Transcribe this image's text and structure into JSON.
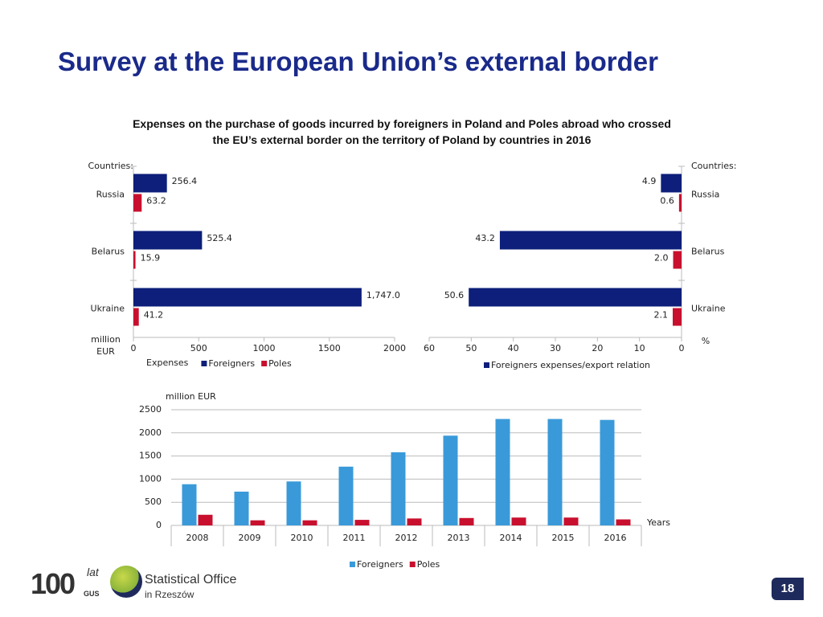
{
  "slide": {
    "title": "Survey at the European Union’s external border",
    "logo": {
      "number": "100",
      "script": "lat",
      "abbrev": "GUS",
      "office": "Statistical Office",
      "city": "in Rzeszów"
    },
    "page_number": "18"
  },
  "chart_data": [
    {
      "type": "hbar",
      "title": "Expenses on the purchase of goods incurred by foreigners in Poland and Poles abroad who crossed the EU’s external border on the territory of Poland by countries in 2016",
      "category_label": "Countries:",
      "unit_label": "million EUR",
      "legend_label": "Expenses",
      "categories": [
        "Russia",
        "Belarus",
        "Ukraine"
      ],
      "series": [
        {
          "name": "Foreigners",
          "color": "#0d1f7a",
          "values": [
            256.4,
            525.4,
            1747.0
          ],
          "value_labels": [
            "256.4",
            "525.4",
            "1,747.0"
          ]
        },
        {
          "name": "Poles",
          "color": "#c8102e",
          "values": [
            63.2,
            15.9,
            41.2
          ],
          "value_labels": [
            "63.2",
            "15.9",
            "41.2"
          ]
        }
      ],
      "xlim": [
        0,
        2000
      ],
      "xticks": [
        0,
        500,
        1000,
        1500,
        2000
      ]
    },
    {
      "type": "hbar",
      "category_label": "Countries:",
      "unit_label": "%",
      "categories": [
        "Russia",
        "Belarus",
        "Ukraine"
      ],
      "series": [
        {
          "name": "Foreigners expenses/export relation",
          "color": "#0d1f7a",
          "values": [
            4.9,
            43.2,
            50.6
          ],
          "value_labels": [
            "4.9",
            "43.2",
            "50.6"
          ]
        },
        {
          "color": "#c8102e",
          "values": [
            0.6,
            2.0,
            2.1
          ],
          "value_labels": [
            "0.6",
            "2.0",
            "2.1"
          ]
        }
      ],
      "xlim": [
        60,
        0
      ],
      "xticks": [
        60,
        50,
        40,
        30,
        20,
        10,
        0
      ]
    },
    {
      "type": "bar",
      "ylabel": "million EUR",
      "xlabel": "Years",
      "categories": [
        "2008",
        "2009",
        "2010",
        "2011",
        "2012",
        "2013",
        "2014",
        "2015",
        "2016"
      ],
      "series": [
        {
          "name": "Foreigners",
          "color": "#3a9ad9",
          "values": [
            890,
            730,
            950,
            1270,
            1580,
            1940,
            2300,
            2300,
            2280
          ]
        },
        {
          "name": "Poles",
          "color": "#c8102e",
          "values": [
            230,
            110,
            110,
            120,
            150,
            160,
            170,
            170,
            130
          ]
        }
      ],
      "ylim": [
        0,
        2500
      ],
      "yticks": [
        0,
        500,
        1000,
        1500,
        2000,
        2500
      ],
      "grid": true
    }
  ]
}
